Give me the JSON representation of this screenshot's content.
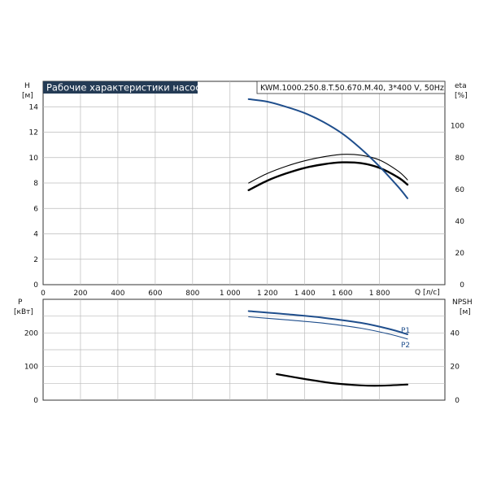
{
  "colors": {
    "head": "#1f4e8c",
    "eta": "#000000",
    "grid": "#bbbbbb",
    "title_bg": "#243b55",
    "p1": "#1f4e8c",
    "p2": "#1f4e8c",
    "npsh": "#000000"
  },
  "header": {
    "title": "Рабочие характеристики насоса",
    "model": "KWM.1000.250.8.T.50.670.M.40, 3*400 V, 50Hz"
  },
  "chart_data": [
    {
      "type": "line",
      "xlabel": "Q [л/с]",
      "ylabel": "H",
      "ylabel_unit": "[м]",
      "y2label": "eta",
      "y2label_unit": "[%]",
      "xlim": [
        0,
        2150
      ],
      "ylim": [
        0,
        16
      ],
      "y2lim": [
        0,
        128
      ],
      "x_ticks": [
        0,
        200,
        400,
        600,
        800,
        1000,
        1200,
        1400,
        1600,
        1800
      ],
      "x_tick_labels": [
        "0",
        "200",
        "400",
        "600",
        "800",
        "1 000",
        "1 200",
        "1 400",
        "1 600",
        "1 800"
      ],
      "y_ticks": [
        0,
        2,
        4,
        6,
        8,
        10,
        12,
        14
      ],
      "y_tick_labels": [
        "0",
        "2",
        "4",
        "6",
        "8",
        "10",
        "12",
        "14"
      ],
      "y2_ticks": [
        0,
        20,
        40,
        60,
        80,
        100
      ],
      "y2_tick_labels": [
        "0",
        "20",
        "40",
        "60",
        "80",
        "100"
      ],
      "grid": true,
      "series": [
        {
          "key": "head",
          "axis": "left",
          "x": [
            1100,
            1200,
            1300,
            1400,
            1500,
            1600,
            1700,
            1800,
            1900,
            1950
          ],
          "values": [
            14.6,
            14.4,
            14.0,
            13.5,
            12.8,
            11.9,
            10.7,
            9.3,
            7.7,
            6.8
          ]
        },
        {
          "key": "eta_thin",
          "axis": "right",
          "x": [
            1100,
            1200,
            1300,
            1400,
            1500,
            1600,
            1700,
            1800,
            1900,
            1950
          ],
          "values": [
            64,
            70,
            74.5,
            78,
            80.5,
            82,
            81.5,
            78.5,
            71.5,
            66
          ]
        },
        {
          "key": "eta_thick",
          "axis": "right",
          "x": [
            1100,
            1200,
            1300,
            1400,
            1500,
            1600,
            1700,
            1800,
            1900,
            1950
          ],
          "values": [
            59.5,
            65.5,
            70,
            73.5,
            75.8,
            77,
            76.5,
            73.5,
            67.5,
            63
          ]
        }
      ]
    },
    {
      "type": "line",
      "xlabel": "",
      "ylabel": "P",
      "ylabel_unit": "[кВт]",
      "y2label": "NPSH",
      "y2label_unit": "[м]",
      "xlim": [
        0,
        2150
      ],
      "ylim": [
        0,
        300
      ],
      "y2lim": [
        0,
        60
      ],
      "y_ticks": [
        0,
        100,
        200
      ],
      "y_tick_labels": [
        "0",
        "100",
        "200"
      ],
      "y2_ticks": [
        0,
        20,
        40
      ],
      "y2_tick_labels": [
        "0",
        "20",
        "40"
      ],
      "grid": true,
      "series": [
        {
          "key": "p1",
          "name": "P1",
          "axis": "left",
          "x": [
            1100,
            1300,
            1500,
            1700,
            1850,
            1950
          ],
          "values": [
            265,
            256,
            245,
            230,
            212,
            196
          ]
        },
        {
          "key": "p2",
          "name": "P2",
          "axis": "left",
          "x": [
            1100,
            1300,
            1500,
            1700,
            1850,
            1950
          ],
          "values": [
            248,
            239,
            229,
            214,
            197,
            182
          ]
        },
        {
          "key": "npsh",
          "axis": "right",
          "x": [
            1250,
            1400,
            1550,
            1700,
            1800,
            1950
          ],
          "values": [
            15.5,
            12.6,
            10.1,
            8.8,
            8.6,
            9.3
          ]
        }
      ]
    }
  ]
}
